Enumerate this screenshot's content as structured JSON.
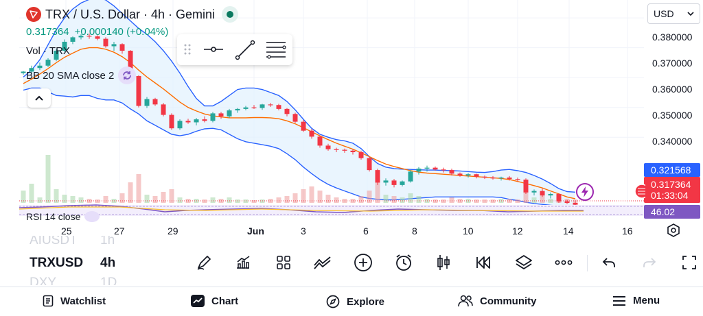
{
  "header": {
    "title": "TRX / U.S. Dollar · 4h · Gemini",
    "price": "0.317364",
    "change": "+0.000140 (+0.04%)",
    "logo_icon": "tron-logo-icon"
  },
  "legends": {
    "volume": "Vol · TRX",
    "bollinger": "BB 20 SMA close 2",
    "rsi": "RSI 14 close"
  },
  "currency": {
    "selected": "USD"
  },
  "price_axis": [
    "0.380000",
    "0.370000",
    "0.360000",
    "0.350000",
    "0.340000"
  ],
  "price_tags": {
    "bb_upper": "0.321568",
    "last_price": "0.317364",
    "countdown": "01:33:04",
    "rsi": "46.02"
  },
  "time_axis": [
    "25",
    "27",
    "29",
    "Jun",
    "3",
    "6",
    "8",
    "10",
    "12",
    "14",
    "16"
  ],
  "symbols": {
    "prev": "AIUSDT",
    "current": "TRXUSD",
    "next": "DXY"
  },
  "intervals": {
    "prev": "1h",
    "current": "4h",
    "next": "1D"
  },
  "toolbar": [
    "pencil-icon",
    "indicators-icon",
    "templates-icon",
    "compare-icon",
    "add-icon",
    "alert-icon",
    "chart-type-icon",
    "replay-icon",
    "layers-icon",
    "more-icon",
    "undo-icon",
    "redo-icon",
    "fullscreen-icon"
  ],
  "nav": {
    "watchlist": "Watchlist",
    "chart": "Chart",
    "explore": "Explore",
    "community": "Community",
    "menu": "Menu"
  },
  "colors": {
    "up": "#26a69a",
    "down": "#f23645",
    "bb_band": "#2962ff",
    "bb_basis": "#ff6d00",
    "rsi": "#7e57c2",
    "price_green": "#089981"
  },
  "chart_data": {
    "type": "candlestick",
    "y_axis_range": [
      0.318,
      0.386
    ],
    "x_labels": [
      "25",
      "27",
      "29",
      "Jun",
      "3",
      "6",
      "8",
      "10",
      "12",
      "14",
      "16"
    ],
    "candles": [
      [
        0.3615,
        0.3622,
        0.361,
        0.362
      ],
      [
        0.362,
        0.364,
        0.3615,
        0.3632
      ],
      [
        0.3632,
        0.365,
        0.3625,
        0.364
      ],
      [
        0.364,
        0.3665,
        0.3635,
        0.366
      ],
      [
        0.366,
        0.3695,
        0.3655,
        0.369
      ],
      [
        0.369,
        0.3728,
        0.3685,
        0.372
      ],
      [
        0.372,
        0.3738,
        0.3712,
        0.3735
      ],
      [
        0.3735,
        0.3745,
        0.3728,
        0.374
      ],
      [
        0.374,
        0.3748,
        0.373,
        0.3738
      ],
      [
        0.3738,
        0.3742,
        0.3725,
        0.373
      ],
      [
        0.373,
        0.3735,
        0.37,
        0.3705
      ],
      [
        0.3705,
        0.372,
        0.369,
        0.3712
      ],
      [
        0.3712,
        0.3715,
        0.368,
        0.369
      ],
      [
        0.369,
        0.3692,
        0.3595,
        0.3605
      ],
      [
        0.3605,
        0.3608,
        0.35,
        0.3505
      ],
      [
        0.3505,
        0.3535,
        0.3498,
        0.3528
      ],
      [
        0.3528,
        0.3532,
        0.3505,
        0.351
      ],
      [
        0.351,
        0.3515,
        0.347,
        0.3475
      ],
      [
        0.3475,
        0.348,
        0.3425,
        0.343
      ],
      [
        0.343,
        0.346,
        0.3425,
        0.3455
      ],
      [
        0.3455,
        0.3462,
        0.3445,
        0.345
      ],
      [
        0.345,
        0.3465,
        0.344,
        0.346
      ],
      [
        0.346,
        0.347,
        0.345,
        0.3455
      ],
      [
        0.3455,
        0.3485,
        0.345,
        0.348
      ],
      [
        0.348,
        0.3485,
        0.3462,
        0.347
      ],
      [
        0.347,
        0.3495,
        0.3465,
        0.349
      ],
      [
        0.349,
        0.3498,
        0.3482,
        0.3495
      ],
      [
        0.3495,
        0.3505,
        0.349,
        0.35
      ],
      [
        0.35,
        0.3508,
        0.3495,
        0.3498
      ],
      [
        0.3498,
        0.3512,
        0.3492,
        0.351
      ],
      [
        0.351,
        0.3515,
        0.3502,
        0.3508
      ],
      [
        0.3508,
        0.3512,
        0.349,
        0.3495
      ],
      [
        0.3495,
        0.3498,
        0.347,
        0.3478
      ],
      [
        0.3478,
        0.3482,
        0.3448,
        0.3452
      ],
      [
        0.3452,
        0.3458,
        0.3418,
        0.3422
      ],
      [
        0.3422,
        0.3428,
        0.3395,
        0.3402
      ],
      [
        0.3402,
        0.3405,
        0.3365,
        0.3372
      ],
      [
        0.3372,
        0.3378,
        0.3355,
        0.336
      ],
      [
        0.336,
        0.3365,
        0.335,
        0.3358
      ],
      [
        0.3358,
        0.3362,
        0.3348,
        0.3355
      ],
      [
        0.3355,
        0.336,
        0.3342,
        0.335
      ],
      [
        0.335,
        0.3355,
        0.3325,
        0.333
      ],
      [
        0.333,
        0.3335,
        0.3285,
        0.329
      ],
      [
        0.329,
        0.3295,
        0.324,
        0.3248
      ],
      [
        0.3248,
        0.3262,
        0.3238,
        0.3255
      ],
      [
        0.3255,
        0.326,
        0.3232,
        0.324
      ],
      [
        0.324,
        0.3255,
        0.3235,
        0.3252
      ],
      [
        0.3252,
        0.329,
        0.3248,
        0.3285
      ],
      [
        0.3285,
        0.33,
        0.3275,
        0.3295
      ],
      [
        0.3295,
        0.3305,
        0.3285,
        0.3298
      ],
      [
        0.3298,
        0.3302,
        0.3288,
        0.3292
      ],
      [
        0.3292,
        0.3298,
        0.3282,
        0.329
      ],
      [
        0.329,
        0.3295,
        0.3272,
        0.3278
      ],
      [
        0.3278,
        0.3282,
        0.3268,
        0.3272
      ],
      [
        0.3272,
        0.328,
        0.3265,
        0.3276
      ],
      [
        0.3276,
        0.3278,
        0.3262,
        0.3268
      ],
      [
        0.3268,
        0.3272,
        0.326,
        0.3265
      ],
      [
        0.3265,
        0.327,
        0.3258,
        0.3262
      ],
      [
        0.3262,
        0.3268,
        0.3255,
        0.3265
      ],
      [
        0.3265,
        0.327,
        0.3255,
        0.326
      ],
      [
        0.326,
        0.3265,
        0.3252,
        0.3258
      ],
      [
        0.3258,
        0.3262,
        0.321,
        0.3215
      ],
      [
        0.3215,
        0.3225,
        0.3205,
        0.322
      ],
      [
        0.322,
        0.3228,
        0.32,
        0.3205
      ],
      [
        0.3205,
        0.3215,
        0.3195,
        0.321
      ],
      [
        0.321,
        0.3212,
        0.318,
        0.3185
      ],
      [
        0.3185,
        0.319,
        0.3176,
        0.318
      ],
      [
        0.318,
        0.3185,
        0.317,
        0.3174
      ]
    ],
    "bb_upper": [
      0.3602,
      0.3625,
      0.366,
      0.371,
      0.376,
      0.38,
      0.383,
      0.385,
      0.3862,
      0.387,
      0.386,
      0.384,
      0.3815,
      0.379,
      0.3765,
      0.3745,
      0.372,
      0.369,
      0.3655,
      0.3615,
      0.357,
      0.353,
      0.3505,
      0.3505,
      0.352,
      0.354,
      0.356,
      0.3565,
      0.3565,
      0.356,
      0.355,
      0.354,
      0.352,
      0.3492,
      0.346,
      0.343,
      0.341,
      0.34,
      0.3392,
      0.3388,
      0.338,
      0.3362,
      0.3335,
      0.3312,
      0.33,
      0.3295,
      0.3293,
      0.3292,
      0.3291,
      0.329,
      0.329,
      0.3289,
      0.3288,
      0.3287,
      0.3285,
      0.3283,
      0.3282,
      0.3285,
      0.329,
      0.3292,
      0.3288,
      0.3282,
      0.3272,
      0.326,
      0.3245,
      0.3228,
      0.3218,
      0.3216
    ],
    "bb_basis": [
      0.358,
      0.3595,
      0.3612,
      0.363,
      0.365,
      0.3668,
      0.3682,
      0.3695,
      0.37,
      0.37,
      0.3695,
      0.3685,
      0.367,
      0.365,
      0.3625,
      0.3602,
      0.3582,
      0.3562,
      0.354,
      0.3518,
      0.35,
      0.3488,
      0.3478,
      0.3472,
      0.3468,
      0.3465,
      0.3465,
      0.3465,
      0.3466,
      0.3466,
      0.3465,
      0.3462,
      0.3455,
      0.3445,
      0.3432,
      0.3418,
      0.3405,
      0.3392,
      0.338,
      0.337,
      0.336,
      0.3348,
      0.3335,
      0.3322,
      0.331,
      0.3302,
      0.3295,
      0.3288,
      0.3283,
      0.328,
      0.3278,
      0.3276,
      0.3274,
      0.3272,
      0.327,
      0.3268,
      0.3266,
      0.3264,
      0.3262,
      0.3258,
      0.3252,
      0.3245,
      0.3238,
      0.323,
      0.322,
      0.321,
      0.32,
      0.3194
    ],
    "bb_lower": [
      0.3558,
      0.3565,
      0.3565,
      0.3552,
      0.354,
      0.3538,
      0.3535,
      0.354,
      0.354,
      0.353,
      0.3525,
      0.3525,
      0.3515,
      0.3495,
      0.3478,
      0.3455,
      0.344,
      0.3425,
      0.341,
      0.3405,
      0.341,
      0.342,
      0.3428,
      0.343,
      0.3425,
      0.341,
      0.3395,
      0.3385,
      0.338,
      0.3375,
      0.337,
      0.3362,
      0.3345,
      0.3325,
      0.33,
      0.3278,
      0.3258,
      0.3242,
      0.323,
      0.322,
      0.321,
      0.32,
      0.3195,
      0.3192,
      0.319,
      0.319,
      0.3192,
      0.3194,
      0.3196,
      0.3198,
      0.32,
      0.32,
      0.32,
      0.32,
      0.32,
      0.32,
      0.32,
      0.32,
      0.3198,
      0.3192,
      0.3188,
      0.3182,
      0.3178,
      0.3175,
      0.3172,
      0.317,
      0.317,
      0.3172
    ]
  }
}
